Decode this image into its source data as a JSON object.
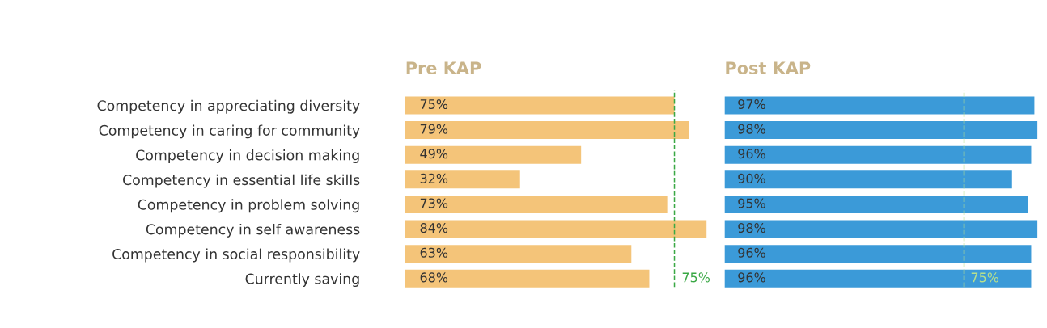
{
  "chart_data": [
    {
      "type": "bar",
      "orientation": "horizontal",
      "title": "Pre KAP",
      "categories": [
        "Competency in appreciating diversity",
        "Competency in caring for community",
        "Competency in decision making",
        "Competency in essential life skills",
        "Competency in problem solving",
        "Competency in self awareness",
        "Competency in social responsibility",
        "Currently saving"
      ],
      "values": [
        75,
        79,
        49,
        32,
        73,
        84,
        63,
        68
      ],
      "value_labels": [
        "75%",
        "79%",
        "49%",
        "32%",
        "73%",
        "84%",
        "63%",
        "68%"
      ],
      "color": "#f4c479",
      "tick_labels": "y",
      "grid": false,
      "legend": false,
      "ref_lines": [
        {
          "axis": "x",
          "value": 75,
          "label": "75%",
          "color": "#3aa845",
          "line_style": "dashed"
        }
      ]
    },
    {
      "type": "bar",
      "orientation": "horizontal",
      "title": "Post KAP",
      "categories": [
        null,
        null,
        null,
        null,
        null,
        null,
        null,
        null
      ],
      "values": [
        97,
        98,
        96,
        90,
        95,
        98,
        96,
        96
      ],
      "value_labels": [
        "97%",
        "98%",
        "96%",
        "90%",
        "95%",
        "98%",
        "96%",
        "96%"
      ],
      "color": "#3b9ad8",
      "tick_labels": false,
      "grid": false,
      "legend": false,
      "ref_lines": [
        {
          "axis": "x",
          "value": 75,
          "label": "75%",
          "color": "#b8e08c",
          "line_style": "dashed"
        }
      ]
    }
  ]
}
